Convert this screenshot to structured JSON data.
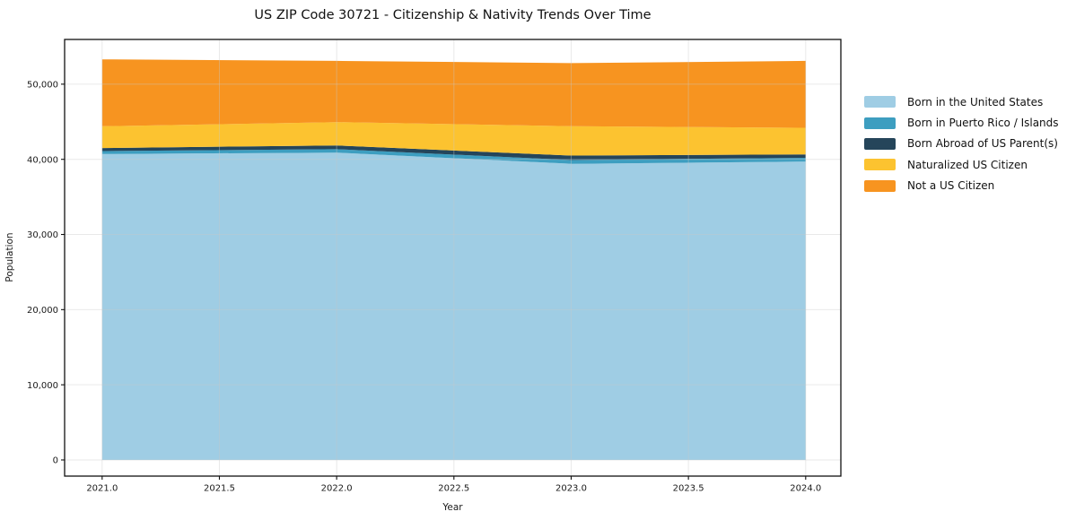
{
  "chart_data": {
    "type": "area",
    "stacked": true,
    "title": "US ZIP Code 30721 - Citizenship & Nativity Trends Over Time",
    "xlabel": "Year",
    "ylabel": "Population",
    "x": [
      2021,
      2022,
      2023,
      2024
    ],
    "series": [
      {
        "name": "Born in the United States",
        "color": "#9fcde4",
        "values": [
          40700,
          40900,
          39400,
          39700
        ]
      },
      {
        "name": "Born in Puerto Rico / Islands",
        "color": "#3d9ec0",
        "values": [
          400,
          450,
          500,
          500
        ]
      },
      {
        "name": "Born Abroad of US Parent(s)",
        "color": "#25455a",
        "values": [
          400,
          500,
          600,
          450
        ]
      },
      {
        "name": "Naturalized US Citizen",
        "color": "#fcc330",
        "values": [
          2900,
          3100,
          3900,
          3550
        ]
      },
      {
        "name": "Not a US Citizen",
        "color": "#f79420",
        "values": [
          8900,
          8150,
          8400,
          8900
        ]
      }
    ],
    "xlim": [
      2020.84,
      2024.15
    ],
    "ylim": [
      -2150,
      55950
    ],
    "xticks": {
      "values": [
        2021,
        2021.5,
        2022,
        2022.5,
        2023,
        2023.5,
        2024
      ],
      "labels": [
        "2021.0",
        "2021.5",
        "2022.0",
        "2022.5",
        "2023.0",
        "2023.5",
        "2024.0"
      ]
    },
    "yticks": {
      "values": [
        0,
        10000,
        20000,
        30000,
        40000,
        50000
      ],
      "labels": [
        "0",
        "10,000",
        "20,000",
        "30,000",
        "40,000",
        "50,000"
      ]
    },
    "grid": true,
    "legend_position": "right"
  },
  "colors": {
    "background": "#ffffff",
    "spine": "#111111",
    "grid": "#c9c9c9",
    "text": "#1a1a1a"
  }
}
